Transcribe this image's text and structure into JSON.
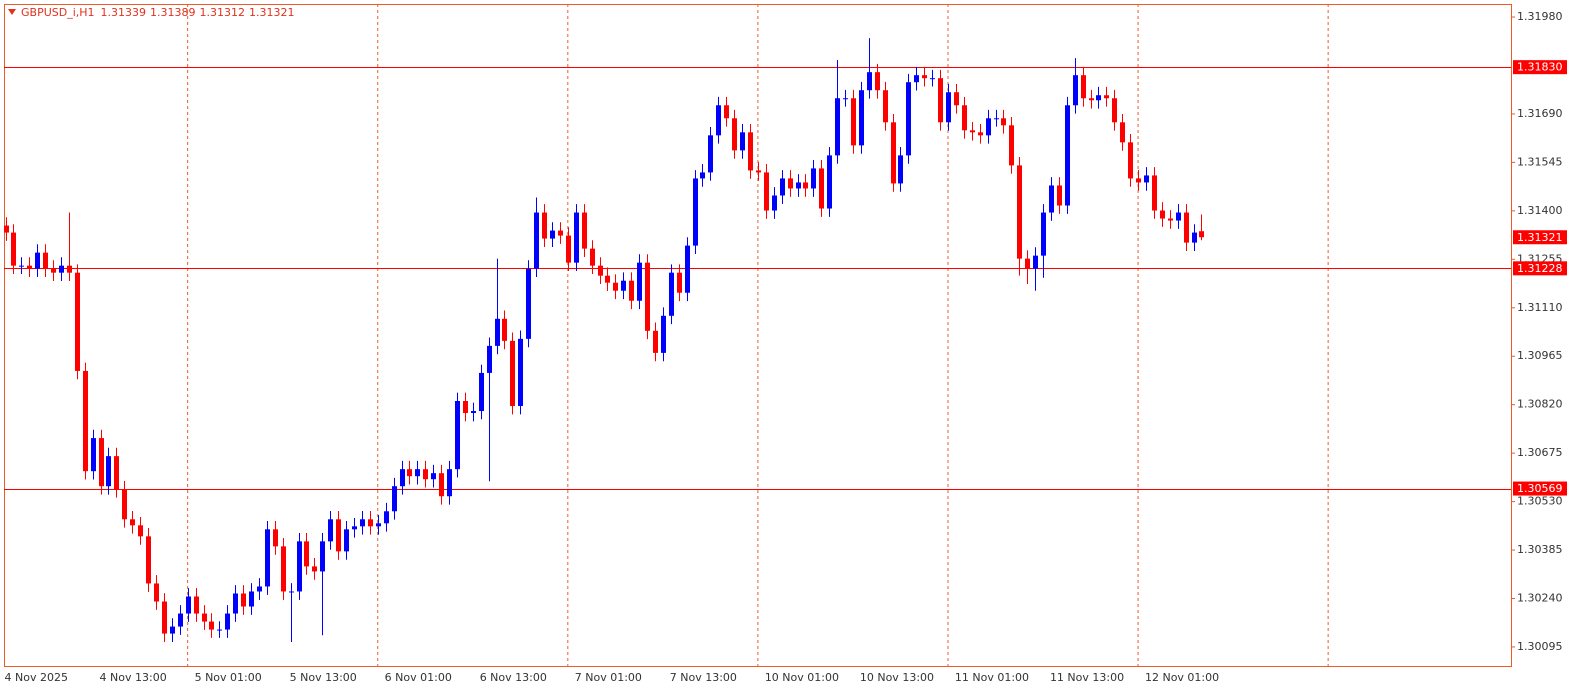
{
  "chart_data": {
    "type": "candlestick",
    "symbol": "GBPUSD_i,H1",
    "header_values": [
      "1.31339",
      "1.31389",
      "1.31312",
      "1.31321"
    ],
    "categories": [
      "4 Nov 2025",
      null,
      null,
      null,
      null,
      null,
      null,
      null,
      null,
      null,
      null,
      null,
      "4 Nov 13:00",
      null,
      null,
      null,
      null,
      null,
      null,
      null,
      null,
      null,
      null,
      null,
      "5 Nov 01:00",
      null,
      null,
      null,
      null,
      null,
      null,
      null,
      null,
      null,
      null,
      null,
      "5 Nov 13:00",
      null,
      null,
      null,
      null,
      null,
      null,
      null,
      null,
      null,
      null,
      null,
      "6 Nov 01:00",
      null,
      null,
      null,
      null,
      null,
      null,
      null,
      null,
      null,
      null,
      null,
      "6 Nov 13:00",
      null,
      null,
      null,
      null,
      null,
      null,
      null,
      null,
      null,
      null,
      null,
      "7 Nov 01:00",
      null,
      null,
      null,
      null,
      null,
      null,
      null,
      null,
      null,
      null,
      null,
      "7 Nov 13:00",
      null,
      null,
      null,
      null,
      null,
      null,
      null,
      null,
      null,
      null,
      null,
      "10 Nov 01:00",
      null,
      null,
      null,
      null,
      null,
      null,
      null,
      null,
      null,
      null,
      null,
      "10 Nov 13:00",
      null,
      null,
      null,
      null,
      null,
      null,
      null,
      null,
      null,
      null,
      null,
      "11 Nov 01:00",
      null,
      null,
      null,
      null,
      null,
      null,
      null,
      null,
      null,
      null,
      null,
      "11 Nov 13:00",
      null,
      null,
      null,
      null,
      null,
      null,
      null,
      null,
      null,
      null,
      null,
      "12 Nov 01:00",
      null,
      null,
      null,
      null,
      null,
      null,
      null
    ],
    "open": [
      1.31356,
      1.31335,
      1.31236,
      1.31236,
      1.31227,
      1.31275,
      1.31227,
      1.31215,
      1.31236,
      1.31215,
      1.30921,
      1.30621,
      1.3072,
      1.30576,
      1.30666,
      1.30567,
      1.30477,
      1.30459,
      1.30426,
      1.30285,
      1.30231,
      1.30135,
      1.30156,
      1.30195,
      1.30246,
      1.30195,
      1.30171,
      1.30147,
      1.30147,
      1.30195,
      1.30255,
      1.30216,
      1.30261,
      1.30276,
      1.30447,
      1.30396,
      1.30261,
      1.30261,
      1.30411,
      1.30336,
      1.30321,
      1.30411,
      1.30477,
      1.30381,
      1.30447,
      1.30456,
      1.30477,
      1.30456,
      1.30465,
      1.30501,
      1.30576,
      1.30627,
      1.30606,
      1.30627,
      1.30597,
      1.30615,
      1.30546,
      1.30627,
      1.30831,
      1.30795,
      1.30801,
      1.30915,
      1.30996,
      1.31077,
      1.31011,
      1.30816,
      1.31017,
      1.31227,
      1.31395,
      1.31317,
      1.31341,
      1.31326,
      1.31245,
      1.31395,
      1.31287,
      1.31236,
      1.31206,
      1.31185,
      1.31161,
      1.31191,
      1.31131,
      1.31245,
      1.31041,
      1.30975,
      1.31086,
      1.31215,
      1.31155,
      1.31296,
      1.31497,
      1.31515,
      1.31626,
      1.31716,
      1.31677,
      1.31581,
      1.31635,
      1.31521,
      1.31515,
      1.31401,
      1.31446,
      1.31497,
      1.31467,
      1.31485,
      1.31467,
      1.31527,
      1.31407,
      1.31566,
      1.31737,
      1.31737,
      1.31596,
      1.31761,
      1.31815,
      1.31761,
      1.31665,
      1.31482,
      1.31566,
      1.31785,
      1.31806,
      1.31797,
      1.31797,
      1.31665,
      1.31755,
      1.31716,
      1.31641,
      1.31635,
      1.31626,
      1.31677,
      1.31677,
      1.31656,
      1.31536,
      1.31257,
      1.31227,
      1.31266,
      1.31395,
      1.31476,
      1.31416,
      1.31716,
      1.31806,
      1.31737,
      1.31731,
      1.31746,
      1.31737,
      1.31665,
      1.31605,
      1.31497,
      1.31485,
      1.31506,
      1.31401,
      1.31377,
      1.31371,
      1.31395,
      1.31305,
      1.31339
    ],
    "high": [
      1.31381,
      1.3136,
      1.31261,
      1.31261,
      1.313,
      1.313,
      1.31252,
      1.31261,
      1.31395,
      1.3124,
      1.30946,
      1.30745,
      1.30745,
      1.30691,
      1.30691,
      1.30592,
      1.30502,
      1.30484,
      1.30451,
      1.3031,
      1.30256,
      1.30181,
      1.3022,
      1.30271,
      1.30271,
      1.3022,
      1.30196,
      1.30172,
      1.3022,
      1.3028,
      1.3028,
      1.30286,
      1.30301,
      1.30472,
      1.30472,
      1.30421,
      1.30286,
      1.30436,
      1.30436,
      1.30361,
      1.30436,
      1.30502,
      1.30502,
      1.30472,
      1.30481,
      1.30502,
      1.30502,
      1.3049,
      1.30526,
      1.30601,
      1.30652,
      1.30652,
      1.30652,
      1.30652,
      1.3064,
      1.3064,
      1.30652,
      1.30856,
      1.30856,
      1.30826,
      1.3094,
      1.31021,
      1.31257,
      1.31102,
      1.31036,
      1.31042,
      1.31252,
      1.3144,
      1.3142,
      1.31366,
      1.31366,
      1.31351,
      1.3142,
      1.3142,
      1.31312,
      1.31261,
      1.31231,
      1.3121,
      1.31216,
      1.31216,
      1.3127,
      1.3127,
      1.31066,
      1.31111,
      1.3124,
      1.3124,
      1.31321,
      1.31522,
      1.3154,
      1.31651,
      1.31741,
      1.31741,
      1.31702,
      1.3166,
      1.3166,
      1.31546,
      1.3154,
      1.31471,
      1.31522,
      1.31522,
      1.3151,
      1.3151,
      1.31552,
      1.31552,
      1.31591,
      1.31851,
      1.31762,
      1.31762,
      1.31786,
      1.31917,
      1.3184,
      1.31786,
      1.3169,
      1.31591,
      1.3181,
      1.31831,
      1.31831,
      1.31822,
      1.31822,
      1.3178,
      1.3178,
      1.31741,
      1.31666,
      1.3166,
      1.31702,
      1.31702,
      1.31702,
      1.31681,
      1.31561,
      1.31282,
      1.31291,
      1.3142,
      1.31501,
      1.31501,
      1.31741,
      1.31857,
      1.31831,
      1.31762,
      1.31771,
      1.31771,
      1.31762,
      1.3169,
      1.3163,
      1.31522,
      1.31531,
      1.31531,
      1.31426,
      1.31402,
      1.3142,
      1.3142,
      1.3136,
      1.31389
    ],
    "low": [
      1.3131,
      1.31211,
      1.31211,
      1.31202,
      1.31202,
      1.31202,
      1.3119,
      1.3119,
      1.3119,
      1.30896,
      1.30596,
      1.30596,
      1.30551,
      1.30551,
      1.30542,
      1.30452,
      1.30434,
      1.30401,
      1.3026,
      1.30206,
      1.3011,
      1.3011,
      1.30131,
      1.3017,
      1.3017,
      1.30146,
      1.30122,
      1.30122,
      1.30122,
      1.3017,
      1.30191,
      1.30191,
      1.30236,
      1.30251,
      1.30371,
      1.30236,
      1.3011,
      1.30236,
      1.30311,
      1.30296,
      1.3013,
      1.30386,
      1.30356,
      1.30356,
      1.30422,
      1.30431,
      1.30431,
      1.30431,
      1.3044,
      1.30476,
      1.30551,
      1.30581,
      1.30581,
      1.30572,
      1.30572,
      1.30521,
      1.30521,
      1.30602,
      1.3077,
      1.3077,
      1.30776,
      1.30591,
      1.30971,
      1.30986,
      1.30791,
      1.30791,
      1.30992,
      1.31202,
      1.31292,
      1.31292,
      1.31301,
      1.3122,
      1.3122,
      1.31262,
      1.31211,
      1.31181,
      1.3116,
      1.31136,
      1.31136,
      1.31106,
      1.31106,
      1.31016,
      1.3095,
      1.3095,
      1.31061,
      1.3113,
      1.3113,
      1.31271,
      1.31472,
      1.3149,
      1.31601,
      1.31652,
      1.31556,
      1.31556,
      1.31496,
      1.3149,
      1.31376,
      1.31376,
      1.31421,
      1.31442,
      1.31442,
      1.31442,
      1.31442,
      1.31382,
      1.31382,
      1.31541,
      1.31712,
      1.31571,
      1.31571,
      1.31736,
      1.31736,
      1.3164,
      1.31457,
      1.31457,
      1.31541,
      1.3176,
      1.31772,
      1.31772,
      1.3164,
      1.3164,
      1.31691,
      1.31616,
      1.3161,
      1.31601,
      1.31601,
      1.31652,
      1.31631,
      1.31511,
      1.31206,
      1.31181,
      1.31161,
      1.312,
      1.3137,
      1.31391,
      1.31391,
      1.31691,
      1.31712,
      1.31706,
      1.31706,
      1.31712,
      1.3164,
      1.3158,
      1.31472,
      1.3146,
      1.3146,
      1.31376,
      1.31352,
      1.31346,
      1.31346,
      1.3128,
      1.3128,
      1.31312
    ],
    "close": [
      1.31335,
      1.31236,
      1.31236,
      1.31227,
      1.31275,
      1.31227,
      1.31215,
      1.31236,
      1.31215,
      1.30921,
      1.30621,
      1.3072,
      1.30576,
      1.30666,
      1.30567,
      1.30477,
      1.30459,
      1.30426,
      1.30285,
      1.30231,
      1.30135,
      1.30156,
      1.30195,
      1.30246,
      1.30195,
      1.30171,
      1.30147,
      1.30147,
      1.30195,
      1.30255,
      1.30216,
      1.30261,
      1.30276,
      1.30447,
      1.30396,
      1.30261,
      1.30261,
      1.30411,
      1.30336,
      1.30321,
      1.30411,
      1.30477,
      1.30381,
      1.30447,
      1.30456,
      1.30477,
      1.30456,
      1.30465,
      1.30501,
      1.30576,
      1.30627,
      1.30606,
      1.30627,
      1.30597,
      1.30615,
      1.30546,
      1.30627,
      1.30831,
      1.30795,
      1.30801,
      1.30915,
      1.30996,
      1.31077,
      1.31011,
      1.30816,
      1.31017,
      1.31227,
      1.31395,
      1.31317,
      1.31341,
      1.31326,
      1.31245,
      1.31395,
      1.31287,
      1.31236,
      1.31206,
      1.31185,
      1.31161,
      1.31191,
      1.31131,
      1.31245,
      1.31041,
      1.30975,
      1.31086,
      1.31215,
      1.31155,
      1.31296,
      1.31497,
      1.31515,
      1.31626,
      1.31716,
      1.31677,
      1.31581,
      1.31635,
      1.31521,
      1.31515,
      1.31401,
      1.31446,
      1.31497,
      1.31467,
      1.31485,
      1.31467,
      1.31527,
      1.31407,
      1.31566,
      1.31737,
      1.31737,
      1.31596,
      1.31761,
      1.31815,
      1.31761,
      1.31665,
      1.31482,
      1.31566,
      1.31785,
      1.31806,
      1.31797,
      1.31797,
      1.31665,
      1.31755,
      1.31716,
      1.31641,
      1.31635,
      1.31626,
      1.31677,
      1.31677,
      1.31656,
      1.31536,
      1.31257,
      1.31227,
      1.31266,
      1.31395,
      1.31476,
      1.31416,
      1.31716,
      1.31806,
      1.31737,
      1.31731,
      1.31746,
      1.31737,
      1.31665,
      1.31605,
      1.31497,
      1.31485,
      1.31506,
      1.31401,
      1.31377,
      1.31371,
      1.31395,
      1.31305,
      1.31335,
      1.31321
    ],
    "up_color": "#0000ff",
    "down_color": "#ff0000",
    "ylim": [
      1.30038,
      1.32019
    ],
    "yticks": [
      {
        "value": 1.3198,
        "label": "1.31980"
      },
      {
        "value": 1.3169,
        "label": "1.31690"
      },
      {
        "value": 1.31545,
        "label": "1.31545"
      },
      {
        "value": 1.314,
        "label": "1.31400"
      },
      {
        "value": 1.31255,
        "label": "1.31255"
      },
      {
        "value": 1.3111,
        "label": "1.31110"
      },
      {
        "value": 1.30965,
        "label": "1.30965"
      },
      {
        "value": 1.3082,
        "label": "1.30820"
      },
      {
        "value": 1.30675,
        "label": "1.30675"
      },
      {
        "value": 1.3053,
        "label": "1.30530"
      },
      {
        "value": 1.30385,
        "label": "1.30385"
      },
      {
        "value": 1.3024,
        "label": "1.30240"
      },
      {
        "value": 1.30095,
        "label": "1.30095"
      }
    ],
    "levels": [
      {
        "value": 1.3183,
        "label": "1.31830"
      },
      {
        "value": 1.31228,
        "label": "1.31228"
      },
      {
        "value": 1.30569,
        "label": "1.30569"
      }
    ],
    "level_color": "#ff0000",
    "last_price": {
      "value": 1.31321,
      "label": "1.31321"
    },
    "period_grid": true
  }
}
